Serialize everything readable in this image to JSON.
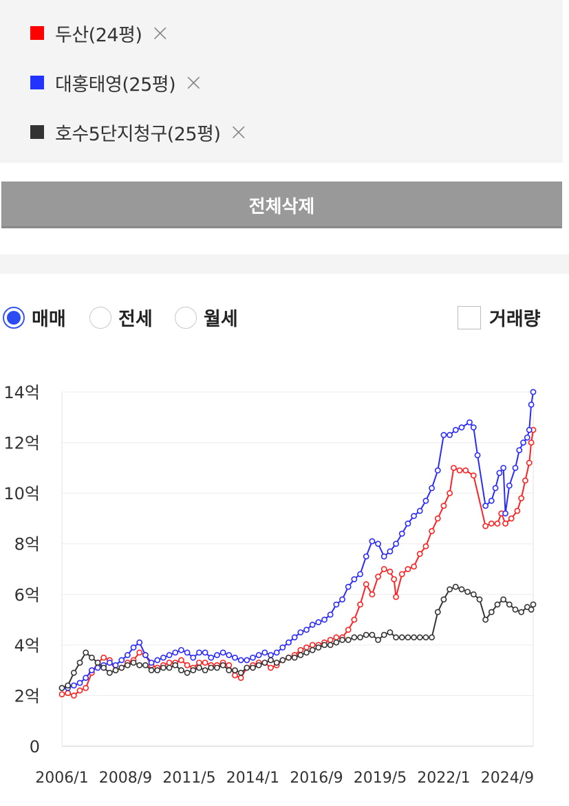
{
  "legend": {
    "items": [
      {
        "name": "두산(24평)",
        "color": "#ff0000",
        "remove_icon": "×"
      },
      {
        "name": "대홍태영(25평)",
        "color": "#2233ff",
        "remove_icon": "×"
      },
      {
        "name": "호수5단지청구(25평)",
        "color": "#333333",
        "remove_icon": "×"
      }
    ]
  },
  "delete_all_label": "전체삭제",
  "trade_types": {
    "options": [
      "매매",
      "전세",
      "월세"
    ],
    "selected": "매매"
  },
  "volume_toggle": {
    "label": "거래량",
    "checked": false
  },
  "chart_data": {
    "type": "line",
    "x_labels": [
      "2006/1",
      "2008/9",
      "2011/5",
      "2014/1",
      "2016/9",
      "2019/5",
      "2022/1",
      "2024/9"
    ],
    "x_range": [
      "2006/1",
      "2025/10"
    ],
    "y_ticks": [
      0,
      2,
      4,
      6,
      8,
      10,
      12,
      14
    ],
    "y_tick_labels": [
      "0",
      "2억",
      "4억",
      "6억",
      "8억",
      "10억",
      "12억",
      "14억"
    ],
    "ylim": [
      0,
      14
    ],
    "grid": true,
    "series": [
      {
        "name": "두산(24평)",
        "color": "#ff2020",
        "points": [
          [
            "2006/1",
            2.05
          ],
          [
            "2006/4",
            2.1
          ],
          [
            "2006/7",
            2.0
          ],
          [
            "2006/10",
            2.2
          ],
          [
            "2007/1",
            2.3
          ],
          [
            "2007/4",
            2.9
          ],
          [
            "2007/7",
            3.3
          ],
          [
            "2007/10",
            3.5
          ],
          [
            "2008/1",
            3.4
          ],
          [
            "2008/4",
            3.0
          ],
          [
            "2008/7",
            3.1
          ],
          [
            "2008/10",
            3.3
          ],
          [
            "2009/1",
            3.4
          ],
          [
            "2009/4",
            3.7
          ],
          [
            "2009/7",
            3.6
          ],
          [
            "2009/10",
            3.2
          ],
          [
            "2010/1",
            3.1
          ],
          [
            "2010/4",
            3.2
          ],
          [
            "2010/7",
            3.3
          ],
          [
            "2010/10",
            3.3
          ],
          [
            "2011/1",
            3.4
          ],
          [
            "2011/4",
            3.2
          ],
          [
            "2011/7",
            3.1
          ],
          [
            "2011/10",
            3.3
          ],
          [
            "2012/1",
            3.3
          ],
          [
            "2012/4",
            3.2
          ],
          [
            "2012/7",
            3.2
          ],
          [
            "2012/10",
            3.3
          ],
          [
            "2013/1",
            3.2
          ],
          [
            "2013/4",
            2.8
          ],
          [
            "2013/7",
            2.7
          ],
          [
            "2013/10",
            3.1
          ],
          [
            "2014/1",
            3.2
          ],
          [
            "2014/4",
            3.3
          ],
          [
            "2014/7",
            3.3
          ],
          [
            "2014/10",
            3.1
          ],
          [
            "2015/1",
            3.2
          ],
          [
            "2015/4",
            3.4
          ],
          [
            "2015/7",
            3.5
          ],
          [
            "2015/10",
            3.6
          ],
          [
            "2016/1",
            3.8
          ],
          [
            "2016/4",
            3.9
          ],
          [
            "2016/7",
            4.0
          ],
          [
            "2016/10",
            4.0
          ],
          [
            "2017/1",
            4.1
          ],
          [
            "2017/4",
            4.2
          ],
          [
            "2017/7",
            4.3
          ],
          [
            "2017/10",
            4.3
          ],
          [
            "2018/1",
            4.6
          ],
          [
            "2018/4",
            5.0
          ],
          [
            "2018/7",
            5.6
          ],
          [
            "2018/10",
            6.4
          ],
          [
            "2019/1",
            6.0
          ],
          [
            "2019/4",
            6.7
          ],
          [
            "2019/7",
            7.0
          ],
          [
            "2019/10",
            6.9
          ],
          [
            "2019/12",
            6.6
          ],
          [
            "2020/1",
            5.9
          ],
          [
            "2020/4",
            6.8
          ],
          [
            "2020/7",
            7.0
          ],
          [
            "2020/10",
            7.1
          ],
          [
            "2021/1",
            7.6
          ],
          [
            "2021/4",
            7.9
          ],
          [
            "2021/7",
            8.5
          ],
          [
            "2021/10",
            9.0
          ],
          [
            "2022/1",
            9.5
          ],
          [
            "2022/4",
            10.0
          ],
          [
            "2022/6",
            11.0
          ],
          [
            "2022/9",
            10.9
          ],
          [
            "2022/12",
            10.9
          ],
          [
            "2023/4",
            10.7
          ],
          [
            "2023/10",
            8.7
          ],
          [
            "2024/1",
            8.8
          ],
          [
            "2024/4",
            8.8
          ],
          [
            "2024/6",
            9.2
          ],
          [
            "2024/8",
            8.8
          ],
          [
            "2024/11",
            9.0
          ],
          [
            "2025/2",
            9.3
          ],
          [
            "2025/4",
            9.8
          ],
          [
            "2025/6",
            10.5
          ],
          [
            "2025/8",
            11.2
          ],
          [
            "2025/9",
            12.0
          ],
          [
            "2025/10",
            12.5
          ]
        ]
      },
      {
        "name": "대홍태영(25평)",
        "color": "#2a2aff",
        "points": [
          [
            "2006/1",
            2.3
          ],
          [
            "2006/4",
            2.3
          ],
          [
            "2006/7",
            2.4
          ],
          [
            "2006/10",
            2.5
          ],
          [
            "2007/1",
            2.7
          ],
          [
            "2007/4",
            3.0
          ],
          [
            "2007/7",
            3.1
          ],
          [
            "2007/10",
            3.2
          ],
          [
            "2008/1",
            3.3
          ],
          [
            "2008/4",
            3.2
          ],
          [
            "2008/7",
            3.4
          ],
          [
            "2008/10",
            3.6
          ],
          [
            "2009/1",
            3.9
          ],
          [
            "2009/4",
            4.1
          ],
          [
            "2009/7",
            3.6
          ],
          [
            "2009/10",
            3.3
          ],
          [
            "2010/1",
            3.4
          ],
          [
            "2010/4",
            3.5
          ],
          [
            "2010/7",
            3.6
          ],
          [
            "2010/10",
            3.7
          ],
          [
            "2011/1",
            3.8
          ],
          [
            "2011/4",
            3.7
          ],
          [
            "2011/7",
            3.5
          ],
          [
            "2011/10",
            3.7
          ],
          [
            "2012/1",
            3.7
          ],
          [
            "2012/4",
            3.5
          ],
          [
            "2012/7",
            3.6
          ],
          [
            "2012/10",
            3.7
          ],
          [
            "2013/1",
            3.6
          ],
          [
            "2013/4",
            3.5
          ],
          [
            "2013/7",
            3.4
          ],
          [
            "2013/10",
            3.4
          ],
          [
            "2014/1",
            3.5
          ],
          [
            "2014/4",
            3.6
          ],
          [
            "2014/7",
            3.7
          ],
          [
            "2014/10",
            3.6
          ],
          [
            "2015/1",
            3.7
          ],
          [
            "2015/4",
            3.9
          ],
          [
            "2015/7",
            4.1
          ],
          [
            "2015/10",
            4.3
          ],
          [
            "2016/1",
            4.5
          ],
          [
            "2016/4",
            4.6
          ],
          [
            "2016/7",
            4.8
          ],
          [
            "2016/10",
            4.9
          ],
          [
            "2017/1",
            5.0
          ],
          [
            "2017/4",
            5.2
          ],
          [
            "2017/7",
            5.6
          ],
          [
            "2017/10",
            5.8
          ],
          [
            "2018/1",
            6.3
          ],
          [
            "2018/4",
            6.6
          ],
          [
            "2018/7",
            6.8
          ],
          [
            "2018/10",
            7.5
          ],
          [
            "2019/1",
            8.1
          ],
          [
            "2019/4",
            8.0
          ],
          [
            "2019/7",
            7.5
          ],
          [
            "2019/10",
            7.7
          ],
          [
            "2020/1",
            8.0
          ],
          [
            "2020/4",
            8.4
          ],
          [
            "2020/7",
            8.8
          ],
          [
            "2020/10",
            9.1
          ],
          [
            "2021/1",
            9.3
          ],
          [
            "2021/4",
            9.7
          ],
          [
            "2021/7",
            10.2
          ],
          [
            "2021/10",
            10.9
          ],
          [
            "2022/1",
            12.3
          ],
          [
            "2022/4",
            12.3
          ],
          [
            "2022/7",
            12.5
          ],
          [
            "2022/10",
            12.6
          ],
          [
            "2023/2",
            12.8
          ],
          [
            "2023/4",
            12.6
          ],
          [
            "2023/6",
            11.5
          ],
          [
            "2023/10",
            9.5
          ],
          [
            "2024/1",
            9.7
          ],
          [
            "2024/3",
            10.2
          ],
          [
            "2024/5",
            10.8
          ],
          [
            "2024/7",
            11.0
          ],
          [
            "2024/8",
            9.2
          ],
          [
            "2024/10",
            10.3
          ],
          [
            "2025/1",
            11.0
          ],
          [
            "2025/3",
            11.7
          ],
          [
            "2025/5",
            12.0
          ],
          [
            "2025/7",
            12.2
          ],
          [
            "2025/8",
            12.5
          ],
          [
            "2025/9",
            13.5
          ],
          [
            "2025/10",
            14.0
          ]
        ]
      },
      {
        "name": "호수5단지청구(25평)",
        "color": "#333333",
        "points": [
          [
            "2006/1",
            2.3
          ],
          [
            "2006/4",
            2.4
          ],
          [
            "2006/7",
            2.9
          ],
          [
            "2006/10",
            3.3
          ],
          [
            "2007/1",
            3.7
          ],
          [
            "2007/4",
            3.5
          ],
          [
            "2007/7",
            3.3
          ],
          [
            "2007/10",
            3.1
          ],
          [
            "2008/1",
            2.9
          ],
          [
            "2008/4",
            3.0
          ],
          [
            "2008/7",
            3.1
          ],
          [
            "2008/10",
            3.2
          ],
          [
            "2009/1",
            3.3
          ],
          [
            "2009/4",
            3.2
          ],
          [
            "2009/7",
            3.2
          ],
          [
            "2009/10",
            3.0
          ],
          [
            "2010/1",
            3.0
          ],
          [
            "2010/4",
            3.1
          ],
          [
            "2010/7",
            3.1
          ],
          [
            "2010/10",
            3.2
          ],
          [
            "2011/1",
            3.0
          ],
          [
            "2011/4",
            2.9
          ],
          [
            "2011/7",
            3.0
          ],
          [
            "2011/10",
            3.1
          ],
          [
            "2012/1",
            3.0
          ],
          [
            "2012/4",
            3.1
          ],
          [
            "2012/7",
            3.1
          ],
          [
            "2012/10",
            3.2
          ],
          [
            "2013/1",
            3.0
          ],
          [
            "2013/4",
            3.0
          ],
          [
            "2013/7",
            2.9
          ],
          [
            "2013/10",
            3.1
          ],
          [
            "2014/1",
            3.1
          ],
          [
            "2014/4",
            3.2
          ],
          [
            "2014/7",
            3.3
          ],
          [
            "2014/10",
            3.4
          ],
          [
            "2015/1",
            3.3
          ],
          [
            "2015/4",
            3.4
          ],
          [
            "2015/7",
            3.5
          ],
          [
            "2015/10",
            3.5
          ],
          [
            "2016/1",
            3.6
          ],
          [
            "2016/4",
            3.7
          ],
          [
            "2016/7",
            3.8
          ],
          [
            "2016/10",
            3.9
          ],
          [
            "2017/1",
            4.0
          ],
          [
            "2017/4",
            4.0
          ],
          [
            "2017/7",
            4.1
          ],
          [
            "2017/10",
            4.2
          ],
          [
            "2018/1",
            4.2
          ],
          [
            "2018/4",
            4.3
          ],
          [
            "2018/7",
            4.3
          ],
          [
            "2018/10",
            4.4
          ],
          [
            "2019/1",
            4.4
          ],
          [
            "2019/4",
            4.2
          ],
          [
            "2019/7",
            4.4
          ],
          [
            "2019/10",
            4.5
          ],
          [
            "2020/1",
            4.3
          ],
          [
            "2020/4",
            4.3
          ],
          [
            "2020/7",
            4.3
          ],
          [
            "2020/10",
            4.3
          ],
          [
            "2021/1",
            4.3
          ],
          [
            "2021/4",
            4.3
          ],
          [
            "2021/7",
            4.3
          ],
          [
            "2021/10",
            5.3
          ],
          [
            "2022/1",
            5.8
          ],
          [
            "2022/4",
            6.2
          ],
          [
            "2022/7",
            6.3
          ],
          [
            "2022/10",
            6.2
          ],
          [
            "2023/1",
            6.1
          ],
          [
            "2023/4",
            6.0
          ],
          [
            "2023/7",
            5.8
          ],
          [
            "2023/10",
            5.0
          ],
          [
            "2024/1",
            5.3
          ],
          [
            "2024/4",
            5.6
          ],
          [
            "2024/7",
            5.8
          ],
          [
            "2024/10",
            5.6
          ],
          [
            "2025/1",
            5.4
          ],
          [
            "2025/4",
            5.3
          ],
          [
            "2025/7",
            5.5
          ],
          [
            "2025/9",
            5.4
          ],
          [
            "2025/10",
            5.6
          ]
        ]
      }
    ]
  }
}
